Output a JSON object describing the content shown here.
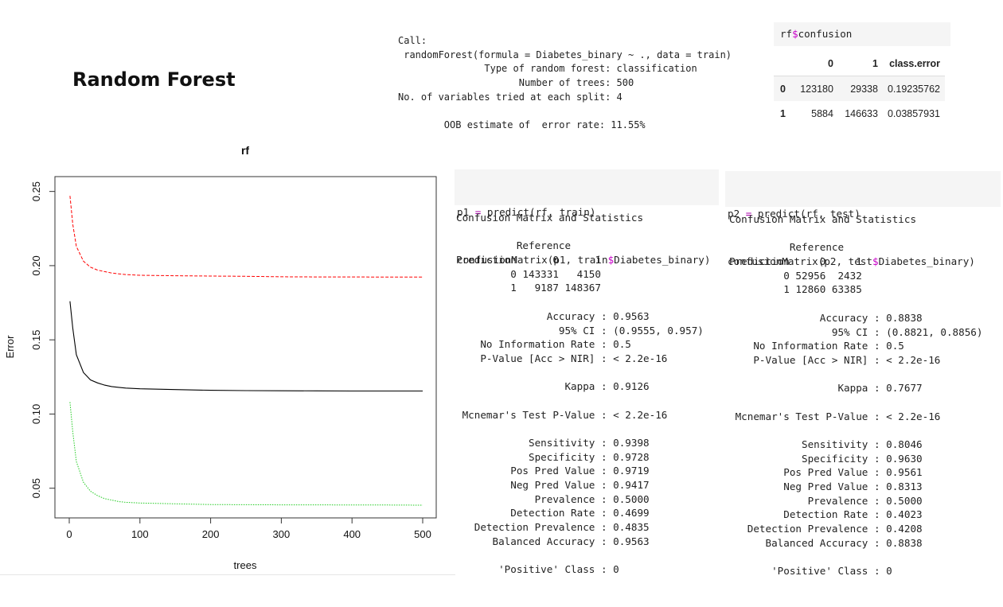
{
  "slide": {
    "title": "Random Forest"
  },
  "call_output": {
    "lines": [
      "Call:",
      " randomForest(formula = Diabetes_binary ~ ., data = train)",
      "               Type of random forest: classification",
      "                     Number of trees: 500",
      "No. of variables tried at each split: 4",
      "",
      "        OOB estimate of  error rate: 11.55%"
    ]
  },
  "confusion": {
    "code_prefix": "rf",
    "code_dollar": "$",
    "code_suffix": "confusion",
    "headers": [
      "",
      "0",
      "1",
      "class.error"
    ],
    "rows": [
      [
        "0",
        "123180",
        "29338",
        "0.19235762"
      ],
      [
        "1",
        "5884",
        "146633",
        "0.03857931"
      ]
    ]
  },
  "chart_data": {
    "type": "line",
    "title": "rf",
    "xlabel": "trees",
    "ylabel": "Error",
    "xlim": [
      0,
      500
    ],
    "ylim": [
      0.03,
      0.26
    ],
    "xticks": [
      "0",
      "100",
      "200",
      "300",
      "400",
      "500"
    ],
    "yticks": [
      "0.05",
      "0.10",
      "0.15",
      "0.20",
      "0.25"
    ],
    "xtick_values": [
      0,
      100,
      200,
      300,
      400,
      500
    ],
    "ytick_values": [
      0.05,
      0.1,
      0.15,
      0.2,
      0.25
    ],
    "grid": false,
    "series": [
      {
        "color": "#ff0000",
        "style": "dashed",
        "x": [
          1,
          5,
          10,
          20,
          30,
          40,
          50,
          60,
          70,
          80,
          100,
          150,
          200,
          250,
          300,
          350,
          400,
          450,
          500
        ],
        "y": [
          0.247,
          0.228,
          0.213,
          0.203,
          0.199,
          0.197,
          0.196,
          0.195,
          0.1945,
          0.194,
          0.1935,
          0.1932,
          0.193,
          0.1928,
          0.1925,
          0.1924,
          0.1924,
          0.1923,
          0.1923
        ]
      },
      {
        "color": "#000000",
        "style": "solid",
        "x": [
          1,
          5,
          10,
          20,
          30,
          40,
          50,
          60,
          70,
          80,
          100,
          150,
          200,
          250,
          300,
          350,
          400,
          450,
          500
        ],
        "y": [
          0.176,
          0.158,
          0.14,
          0.128,
          0.123,
          0.121,
          0.1195,
          0.1185,
          0.118,
          0.1175,
          0.117,
          0.1165,
          0.116,
          0.1158,
          0.1157,
          0.1156,
          0.1155,
          0.1155,
          0.1155
        ]
      },
      {
        "color": "#22cc22",
        "style": "dotted",
        "x": [
          1,
          5,
          10,
          20,
          30,
          40,
          50,
          60,
          70,
          80,
          100,
          150,
          200,
          250,
          300,
          350,
          400,
          450,
          500
        ],
        "y": [
          0.108,
          0.088,
          0.068,
          0.054,
          0.048,
          0.045,
          0.043,
          0.042,
          0.041,
          0.0405,
          0.04,
          0.0395,
          0.039,
          0.0389,
          0.0388,
          0.0388,
          0.0387,
          0.0387,
          0.0386
        ]
      }
    ]
  },
  "train_cell": {
    "code_line1_var": "p1",
    "code_line1_assign": " = ",
    "code_line1_rest": "predict(rf, train)",
    "code_line2_pre": "confusionMatrix(p1, train",
    "code_line2_dollar": "$",
    "code_line2_post": "Diabetes_binary)",
    "output": [
      "Confusion Matrix and Statistics",
      "",
      "          Reference",
      "Prediction      0      1",
      "         0 143331   4150",
      "         1   9187 148367",
      "",
      "               Accuracy : 0.9563",
      "                 95% CI : (0.9555, 0.957)",
      "    No Information Rate : 0.5",
      "    P-Value [Acc > NIR] : < 2.2e-16",
      "",
      "                  Kappa : 0.9126",
      "",
      " Mcnemar's Test P-Value : < 2.2e-16",
      "",
      "            Sensitivity : 0.9398",
      "            Specificity : 0.9728",
      "         Pos Pred Value : 0.9719",
      "         Neg Pred Value : 0.9417",
      "             Prevalence : 0.5000",
      "         Detection Rate : 0.4699",
      "   Detection Prevalence : 0.4835",
      "      Balanced Accuracy : 0.9563",
      "",
      "       'Positive' Class : 0"
    ]
  },
  "test_cell": {
    "code_line1_var": "p2",
    "code_line1_assign": " = ",
    "code_line1_rest": "predict(rf, test)",
    "code_line2_pre": "confusionMatrix(p2, test",
    "code_line2_dollar": "$",
    "code_line2_post": "Diabetes_binary)",
    "output": [
      "Confusion Matrix and Statistics",
      "",
      "          Reference",
      "Prediction     0     1",
      "         0 52956  2432",
      "         1 12860 63385",
      "",
      "               Accuracy : 0.8838",
      "                 95% CI : (0.8821, 0.8856)",
      "    No Information Rate : 0.5",
      "    P-Value [Acc > NIR] : < 2.2e-16",
      "",
      "                  Kappa : 0.7677",
      "",
      " Mcnemar's Test P-Value : < 2.2e-16",
      "",
      "            Sensitivity : 0.8046",
      "            Specificity : 0.9630",
      "         Pos Pred Value : 0.9561",
      "         Neg Pred Value : 0.8313",
      "             Prevalence : 0.5000",
      "         Detection Rate : 0.4023",
      "   Detection Prevalence : 0.4208",
      "      Balanced Accuracy : 0.8838",
      "",
      "       'Positive' Class : 0"
    ]
  }
}
